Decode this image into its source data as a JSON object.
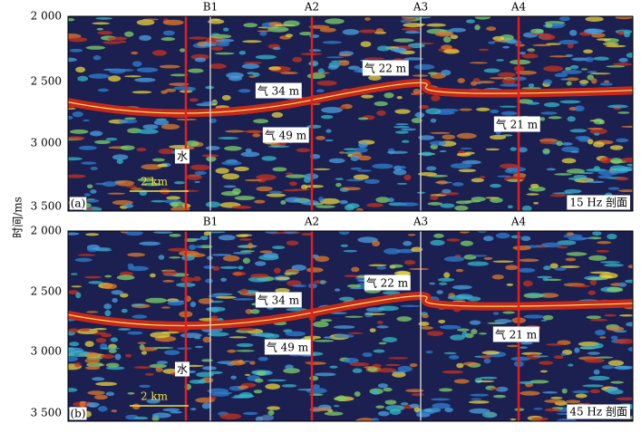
{
  "y_axis_label": "时间/ms",
  "panels": [
    {
      "label": "(a)",
      "caption": "15 Hz 剖面",
      "yticks": [
        "2 000",
        "2 500",
        "3 000",
        "3 500"
      ],
      "wells": [
        "B1",
        "A2",
        "A3",
        "A4"
      ],
      "scale": "2 km",
      "annotations": [
        "气 34 m",
        "气 49 m",
        "气 22 m",
        "气 21 m",
        "水"
      ]
    },
    {
      "label": "(b)",
      "caption": "45 Hz 剖面",
      "yticks": [
        "2 000",
        "2 500",
        "3 000",
        "3 500"
      ],
      "wells": [
        "B1",
        "A2",
        "A3",
        "A4"
      ],
      "scale": "2 km",
      "annotations": [
        "气 34 m",
        "气 49 m",
        "气 22 m",
        "气 21 m",
        "水"
      ]
    }
  ]
}
